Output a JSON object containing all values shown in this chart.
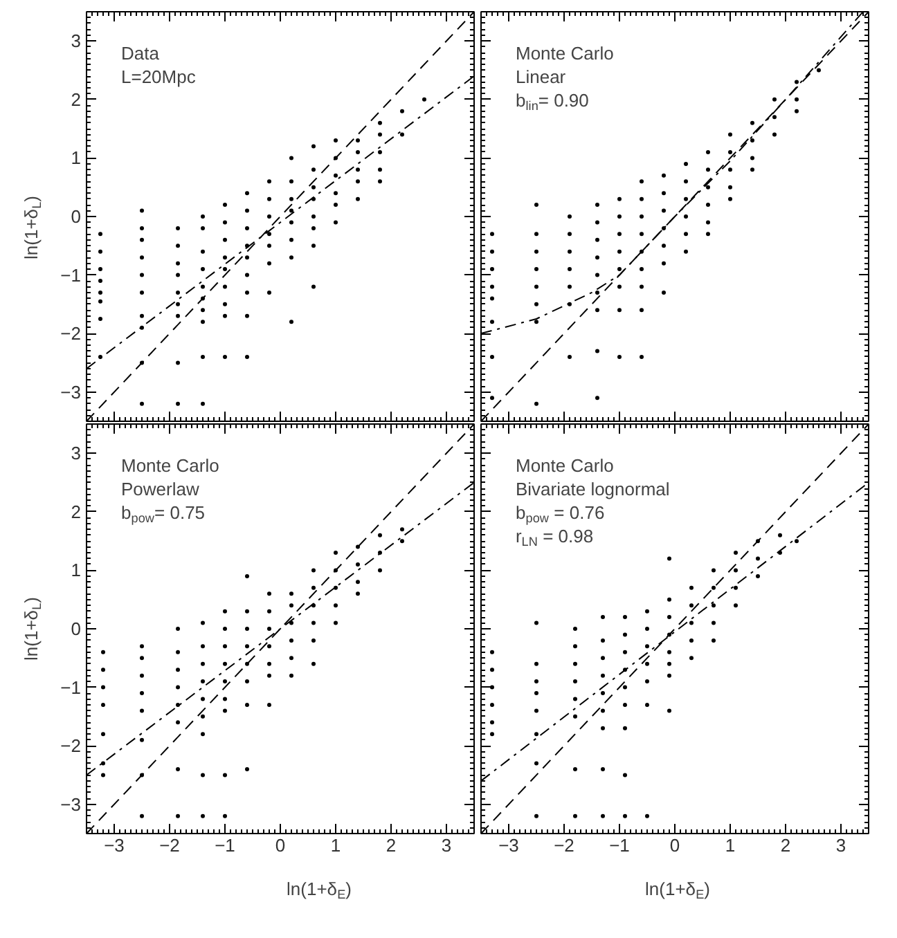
{
  "chart_data": [
    {
      "type": "scatter",
      "ylabel": "ln(1+δ$_{L}$)",
      "annotations": [
        "Data",
        "L=20Mpc"
      ],
      "xlim": [
        -3.5,
        3.5
      ],
      "ylim": [
        -3.5,
        3.5
      ],
      "xticks": [
        -3,
        -2,
        -1,
        0,
        1,
        2,
        3
      ],
      "yticks": [
        -3,
        -2,
        -1,
        0,
        1,
        2,
        3
      ],
      "tick_labels": "y",
      "grid": false,
      "marker": "circle",
      "series": [
        {
          "color": "#000000",
          "x": [
            -3.25,
            -3.25,
            -3.25,
            -3.25,
            -3.25,
            -3.25,
            -3.25,
            -3.25,
            -2.5,
            -2.5,
            -2.5,
            -2.5,
            -2.5,
            -2.5,
            -2.5,
            -2.5,
            -2.5,
            -2.5,
            -1.85,
            -1.85,
            -1.85,
            -1.85,
            -1.85,
            -1.85,
            -1.85,
            -1.85,
            -1.85,
            -1.4,
            -1.4,
            -1.4,
            -1.4,
            -1.4,
            -1.4,
            -1.4,
            -1.4,
            -1.4,
            -1.4,
            -1.0,
            -1.0,
            -1.0,
            -1.0,
            -1.0,
            -1.0,
            -1.0,
            -1.0,
            -1.0,
            -0.6,
            -0.6,
            -0.6,
            -0.6,
            -0.6,
            -0.6,
            -0.6,
            -0.6,
            -0.6,
            -0.2,
            -0.2,
            -0.2,
            -0.2,
            -0.2,
            -0.2,
            -0.2,
            0.2,
            0.2,
            0.2,
            0.2,
            0.2,
            0.2,
            0.2,
            0.2,
            0.6,
            0.6,
            0.6,
            0.6,
            0.6,
            0.6,
            0.6,
            0.6,
            1.0,
            1.0,
            1.0,
            1.0,
            1.0,
            1.0,
            1.4,
            1.4,
            1.4,
            1.4,
            1.4,
            1.8,
            1.8,
            1.8,
            1.8,
            1.8,
            2.2,
            2.2,
            2.6
          ],
          "values": [
            -0.3,
            -0.6,
            -0.9,
            -1.1,
            -1.3,
            -1.45,
            -1.75,
            -2.4,
            0.1,
            -0.2,
            -0.4,
            -0.7,
            -1.0,
            -1.3,
            -1.7,
            -1.9,
            -2.5,
            -3.2,
            -0.2,
            -0.5,
            -0.8,
            -1.0,
            -1.3,
            -1.5,
            -1.7,
            -2.5,
            -3.2,
            0.0,
            -0.2,
            -0.6,
            -0.9,
            -1.2,
            -1.4,
            -1.6,
            -1.8,
            -2.4,
            -3.2,
            0.2,
            -0.1,
            -0.4,
            -0.7,
            -0.9,
            -1.2,
            -1.5,
            -1.7,
            -2.4,
            0.4,
            0.1,
            -0.2,
            -0.5,
            -0.7,
            -1.0,
            -1.3,
            -1.7,
            -2.4,
            0.6,
            0.3,
            0.0,
            -0.3,
            -0.5,
            -0.8,
            -1.3,
            1.0,
            0.6,
            0.3,
            0.1,
            -0.1,
            -0.4,
            -0.7,
            -1.8,
            1.2,
            0.8,
            0.5,
            0.3,
            0.0,
            -0.2,
            -0.5,
            -1.2,
            1.3,
            1.0,
            0.7,
            0.4,
            0.2,
            -0.1,
            1.3,
            1.1,
            0.8,
            0.6,
            0.3,
            1.6,
            1.4,
            1.1,
            0.8,
            0.6,
            1.8,
            1.4,
            2.0
          ]
        },
        {
          "type": "line",
          "color": "#000000",
          "marker": "none",
          "line_style": "dashed",
          "x": [
            -3.5,
            3.5
          ],
          "values": [
            -3.5,
            3.5
          ]
        },
        {
          "type": "line",
          "color": "#000000",
          "marker": "none",
          "line_style": "dashdot",
          "x": [
            -3.5,
            3.5
          ],
          "values": [
            -2.6,
            2.4
          ]
        }
      ]
    },
    {
      "type": "scatter",
      "annotations": [
        "Monte Carlo",
        "Linear",
        "b$_{lin}$= 0.90"
      ],
      "xlim": [
        -3.5,
        3.5
      ],
      "ylim": [
        -3.5,
        3.5
      ],
      "xticks": [
        -3,
        -2,
        -1,
        0,
        1,
        2,
        3
      ],
      "yticks": [
        -3,
        -2,
        -1,
        0,
        1,
        2,
        3
      ],
      "tick_labels": false,
      "grid": false,
      "marker": "circle",
      "series": [
        {
          "color": "#000000",
          "x": [
            -3.3,
            -3.3,
            -3.3,
            -3.3,
            -3.3,
            -3.3,
            -3.3,
            -3.3,
            -2.5,
            -2.5,
            -2.5,
            -2.5,
            -2.5,
            -2.5,
            -2.5,
            -2.5,
            -1.9,
            -1.9,
            -1.9,
            -1.9,
            -1.9,
            -1.9,
            -1.9,
            -1.4,
            -1.4,
            -1.4,
            -1.4,
            -1.4,
            -1.4,
            -1.4,
            -1.4,
            -1.4,
            -1.0,
            -1.0,
            -1.0,
            -1.0,
            -1.0,
            -1.0,
            -1.0,
            -1.0,
            -0.6,
            -0.6,
            -0.6,
            -0.6,
            -0.6,
            -0.6,
            -0.6,
            -0.6,
            -0.6,
            -0.2,
            -0.2,
            -0.2,
            -0.2,
            -0.2,
            -0.2,
            -0.2,
            0.2,
            0.2,
            0.2,
            0.2,
            0.2,
            0.2,
            0.6,
            0.6,
            0.6,
            0.6,
            0.6,
            0.6,
            1.0,
            1.0,
            1.0,
            1.0,
            1.0,
            1.4,
            1.4,
            1.4,
            1.4,
            1.8,
            1.8,
            1.8,
            2.2,
            2.2,
            2.2,
            2.6
          ],
          "values": [
            -0.3,
            -0.6,
            -0.9,
            -1.2,
            -1.4,
            -1.8,
            -2.4,
            -3.1,
            0.2,
            -0.3,
            -0.6,
            -0.9,
            -1.2,
            -1.5,
            -1.8,
            -3.2,
            0.0,
            -0.3,
            -0.6,
            -0.9,
            -1.2,
            -1.5,
            -2.4,
            0.2,
            -0.1,
            -0.4,
            -0.7,
            -1.0,
            -1.3,
            -1.6,
            -2.3,
            -3.1,
            0.3,
            0.0,
            -0.3,
            -0.6,
            -0.9,
            -1.2,
            -1.6,
            -2.4,
            0.6,
            0.3,
            0.0,
            -0.3,
            -0.6,
            -0.9,
            -1.2,
            -1.6,
            -2.4,
            0.7,
            0.4,
            0.1,
            -0.2,
            -0.5,
            -0.8,
            -1.3,
            0.9,
            0.6,
            0.3,
            0.0,
            -0.3,
            -0.6,
            1.1,
            0.8,
            0.5,
            0.2,
            -0.1,
            -0.3,
            1.4,
            1.1,
            0.8,
            0.5,
            0.3,
            1.6,
            1.3,
            1.0,
            0.8,
            2.0,
            1.7,
            1.4,
            2.3,
            2.0,
            1.8,
            2.5
          ]
        },
        {
          "type": "line",
          "color": "#000000",
          "marker": "none",
          "line_style": "dashed",
          "x": [
            -3.5,
            3.5
          ],
          "values": [
            -3.5,
            3.5
          ]
        },
        {
          "type": "line",
          "color": "#000000",
          "marker": "none",
          "line_style": "dashdot",
          "x": [
            -3.5,
            -2.5,
            -1.5,
            -1.0,
            0.0,
            1.0,
            2.0,
            3.4
          ],
          "values": [
            -2.0,
            -1.75,
            -1.3,
            -1.0,
            0.0,
            0.95,
            2.0,
            3.5
          ]
        }
      ]
    },
    {
      "type": "scatter",
      "xlabel": "ln(1+δ$_{E}$)",
      "ylabel": "ln(1+δ$_{L}$)",
      "annotations": [
        "Monte Carlo",
        "Powerlaw",
        "b$_{pow}$= 0.75"
      ],
      "xlim": [
        -3.5,
        3.5
      ],
      "ylim": [
        -3.5,
        3.5
      ],
      "xticks": [
        -3,
        -2,
        -1,
        0,
        1,
        2,
        3
      ],
      "yticks": [
        -3,
        -2,
        -1,
        0,
        1,
        2,
        3
      ],
      "grid": false,
      "marker": "circle",
      "series": [
        {
          "color": "#000000",
          "x": [
            -3.2,
            -3.2,
            -3.2,
            -3.2,
            -3.2,
            -3.2,
            -3.2,
            -2.5,
            -2.5,
            -2.5,
            -2.5,
            -2.5,
            -2.5,
            -2.5,
            -2.5,
            -1.85,
            -1.85,
            -1.85,
            -1.85,
            -1.85,
            -1.85,
            -1.85,
            -1.85,
            -1.4,
            -1.4,
            -1.4,
            -1.4,
            -1.4,
            -1.4,
            -1.4,
            -1.4,
            -1.4,
            -1.0,
            -1.0,
            -1.0,
            -1.0,
            -1.0,
            -1.0,
            -1.0,
            -1.0,
            -1.0,
            -0.6,
            -0.6,
            -0.6,
            -0.6,
            -0.6,
            -0.6,
            -0.6,
            -0.6,
            -0.2,
            -0.2,
            -0.2,
            -0.2,
            -0.2,
            -0.2,
            -0.2,
            0.2,
            0.2,
            0.2,
            0.2,
            0.2,
            0.2,
            0.6,
            0.6,
            0.6,
            0.6,
            0.6,
            0.6,
            1.0,
            1.0,
            1.0,
            1.0,
            1.0,
            1.4,
            1.4,
            1.4,
            1.4,
            1.8,
            1.8,
            1.8,
            2.2,
            2.2
          ],
          "values": [
            -0.4,
            -0.7,
            -1.0,
            -1.3,
            -1.8,
            -2.3,
            -2.5,
            -0.3,
            -0.5,
            -0.8,
            -1.1,
            -1.4,
            -1.9,
            -2.5,
            -3.2,
            0.0,
            -0.4,
            -0.7,
            -1.0,
            -1.3,
            -1.6,
            -2.4,
            -3.2,
            0.1,
            -0.3,
            -0.6,
            -0.9,
            -1.2,
            -1.5,
            -1.8,
            -2.5,
            -3.2,
            0.3,
            0.0,
            -0.3,
            -0.6,
            -0.9,
            -1.2,
            -1.4,
            -2.5,
            -3.2,
            0.9,
            0.3,
            0.0,
            -0.3,
            -0.6,
            -0.9,
            -1.3,
            -2.4,
            0.6,
            0.3,
            0.0,
            -0.3,
            -0.6,
            -0.8,
            -1.3,
            0.6,
            0.4,
            0.1,
            -0.2,
            -0.5,
            -0.8,
            1.0,
            0.7,
            0.4,
            0.1,
            -0.2,
            -0.6,
            1.3,
            1.0,
            0.7,
            0.4,
            0.1,
            1.4,
            1.1,
            0.8,
            0.6,
            1.6,
            1.3,
            1.0,
            1.7,
            1.5
          ]
        },
        {
          "type": "line",
          "color": "#000000",
          "marker": "none",
          "line_style": "dashed",
          "x": [
            -3.5,
            3.5
          ],
          "values": [
            -3.5,
            3.5
          ]
        },
        {
          "type": "line",
          "color": "#000000",
          "marker": "none",
          "line_style": "dashdot",
          "x": [
            -3.5,
            3.5
          ],
          "values": [
            -2.5,
            2.5
          ]
        }
      ]
    },
    {
      "type": "scatter",
      "xlabel": "ln(1+δ$_{E}$)",
      "annotations": [
        "Monte Carlo",
        "Bivariate lognormal",
        "b$_{pow}$ = 0.76",
        "r$_{LN}$ = 0.98"
      ],
      "xlim": [
        -3.5,
        3.5
      ],
      "ylim": [
        -3.5,
        3.5
      ],
      "xticks": [
        -3,
        -2,
        -1,
        0,
        1,
        2,
        3
      ],
      "yticks": [
        -3,
        -2,
        -1,
        0,
        1,
        2,
        3
      ],
      "tick_labels": "x",
      "grid": false,
      "marker": "circle",
      "series": [
        {
          "color": "#000000",
          "x": [
            -3.3,
            -3.3,
            -3.3,
            -3.3,
            -3.3,
            -3.3,
            -2.5,
            -2.5,
            -2.5,
            -2.5,
            -2.5,
            -2.5,
            -2.5,
            -2.5,
            -1.8,
            -1.8,
            -1.8,
            -1.8,
            -1.8,
            -1.8,
            -1.8,
            -1.8,
            -1.3,
            -1.3,
            -1.3,
            -1.3,
            -1.3,
            -1.3,
            -1.3,
            -1.3,
            -1.3,
            -0.9,
            -0.9,
            -0.9,
            -0.9,
            -0.9,
            -0.9,
            -0.9,
            -0.9,
            -0.9,
            -0.5,
            -0.5,
            -0.5,
            -0.5,
            -0.5,
            -0.5,
            -0.5,
            -0.1,
            -0.1,
            -0.1,
            -0.1,
            -0.1,
            -0.1,
            -0.1,
            -0.1,
            0.3,
            0.3,
            0.3,
            0.3,
            0.3,
            0.7,
            0.7,
            0.7,
            0.7,
            0.7,
            1.1,
            1.1,
            1.1,
            1.1,
            1.5,
            1.5,
            1.5,
            1.9,
            1.9,
            2.2
          ],
          "values": [
            -0.4,
            -0.7,
            -1.0,
            -1.3,
            -1.6,
            -1.8,
            0.1,
            -0.6,
            -0.9,
            -1.1,
            -1.4,
            -1.8,
            -2.3,
            -3.2,
            0.0,
            -0.3,
            -0.6,
            -0.9,
            -1.2,
            -1.5,
            -2.4,
            -3.2,
            0.2,
            -0.2,
            -0.5,
            -0.8,
            -1.1,
            -1.4,
            -1.7,
            -2.4,
            -3.2,
            0.2,
            -0.1,
            -0.4,
            -0.7,
            -1.0,
            -1.3,
            -1.7,
            -2.5,
            -3.2,
            0.3,
            0.0,
            -0.3,
            -0.6,
            -0.9,
            -1.3,
            -3.2,
            1.2,
            0.5,
            0.2,
            -0.1,
            -0.4,
            -0.6,
            -0.8,
            -1.4,
            0.7,
            0.4,
            0.1,
            -0.2,
            -0.5,
            1.0,
            0.7,
            0.4,
            0.1,
            -0.2,
            1.3,
            1.0,
            0.7,
            0.4,
            1.5,
            1.2,
            0.9,
            1.6,
            1.3,
            1.5
          ]
        },
        {
          "type": "line",
          "color": "#000000",
          "marker": "none",
          "line_style": "dashed",
          "x": [
            -3.5,
            3.5
          ],
          "values": [
            -3.5,
            3.5
          ]
        },
        {
          "type": "line",
          "color": "#000000",
          "marker": "none",
          "line_style": "dashdot",
          "x": [
            -3.5,
            3.5
          ],
          "values": [
            -2.6,
            2.5
          ]
        }
      ]
    }
  ]
}
